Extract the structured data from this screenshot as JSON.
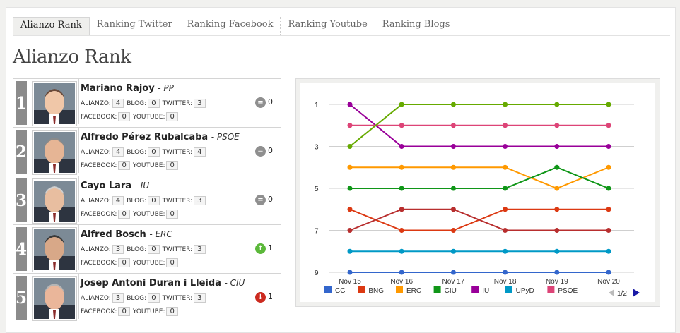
{
  "tabs": [
    {
      "label": "Alianzo Rank",
      "active": true
    },
    {
      "label": "Ranking Twitter",
      "active": false
    },
    {
      "label": "Ranking Facebook",
      "active": false
    },
    {
      "label": "Ranking Youtube",
      "active": false
    },
    {
      "label": "Ranking Blogs",
      "active": false
    }
  ],
  "page_title": "Alianzo Rank",
  "labels": {
    "alianzo": "ALIANZO:",
    "blog": "BLOG:",
    "twitter": "TWITTER:",
    "facebook": "FACEBOOK:",
    "youtube": "YOUTUBE:"
  },
  "rankings": [
    {
      "rank": "1",
      "name": "Mariano Rajoy",
      "party": "PP",
      "alianzo": "4",
      "blog": "0",
      "twitter": "3",
      "facebook": "0",
      "youtube": "0",
      "trend": "equal",
      "trend_icon": "=",
      "change": "0"
    },
    {
      "rank": "2",
      "name": "Alfredo Pérez Rubalcaba",
      "party": "PSOE",
      "alianzo": "4",
      "blog": "0",
      "twitter": "4",
      "facebook": "0",
      "youtube": "0",
      "trend": "equal",
      "trend_icon": "=",
      "change": "0"
    },
    {
      "rank": "3",
      "name": "Cayo Lara",
      "party": "IU",
      "alianzo": "4",
      "blog": "0",
      "twitter": "3",
      "facebook": "0",
      "youtube": "0",
      "trend": "equal",
      "trend_icon": "=",
      "change": "0"
    },
    {
      "rank": "4",
      "name": "Alfred Bosch",
      "party": "ERC",
      "alianzo": "3",
      "blog": "0",
      "twitter": "3",
      "facebook": "0",
      "youtube": "0",
      "trend": "up",
      "trend_icon": "↑",
      "change": "1"
    },
    {
      "rank": "5",
      "name": "Josep Antoni Duran i Lleida",
      "party": "CIU",
      "alianzo": "3",
      "blog": "0",
      "twitter": "3",
      "facebook": "0",
      "youtube": "0",
      "trend": "down",
      "trend_icon": "↓",
      "change": "1"
    }
  ],
  "trend_colors": {
    "equal": "#8f8f8f",
    "up": "#5bb83a",
    "down": "#cc2a1f"
  },
  "chart_data": {
    "type": "line",
    "categories": [
      "Nov 15",
      "Nov 16",
      "Nov 17",
      "Nov 18",
      "Nov 19",
      "Nov 20"
    ],
    "y_ticks": [
      "1",
      "3",
      "5",
      "7",
      "9"
    ],
    "ylim": [
      1,
      9
    ],
    "y_inverted": true,
    "grid": true,
    "series": [
      {
        "name": "CC",
        "color": "#3366cc",
        "values": [
          9,
          9,
          9,
          9,
          9,
          9
        ]
      },
      {
        "name": "BNG",
        "color": "#dc3912",
        "values": [
          6,
          7,
          7,
          6,
          6,
          6
        ]
      },
      {
        "name": "ERC",
        "color": "#ff9900",
        "values": [
          4,
          4,
          4,
          4,
          5,
          4
        ]
      },
      {
        "name": "CIU",
        "color": "#109618",
        "values": [
          5,
          5,
          5,
          5,
          4,
          5
        ]
      },
      {
        "name": "IU",
        "color": "#990099",
        "values": [
          1,
          3,
          3,
          3,
          3,
          3
        ]
      },
      {
        "name": "UPyD",
        "color": "#0099c6",
        "values": [
          8,
          8,
          8,
          8,
          8,
          8
        ]
      },
      {
        "name": "PSOE",
        "color": "#dd4477",
        "values": [
          2,
          2,
          2,
          2,
          2,
          2
        ]
      },
      {
        "name": "",
        "color": "#66aa00",
        "values": [
          3,
          1,
          1,
          1,
          1,
          1
        ]
      },
      {
        "name": "",
        "color": "#b82e2e",
        "values": [
          7,
          6,
          6,
          7,
          7,
          7
        ]
      }
    ],
    "legend_position": "bottom",
    "legend_page": "1/2"
  }
}
